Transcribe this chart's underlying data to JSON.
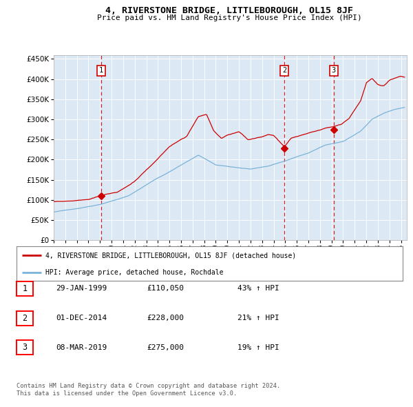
{
  "title": "4, RIVERSTONE BRIDGE, LITTLEBOROUGH, OL15 8JF",
  "subtitle": "Price paid vs. HM Land Registry's House Price Index (HPI)",
  "legend_line1": "4, RIVERSTONE BRIDGE, LITTLEBOROUGH, OL15 8JF (detached house)",
  "legend_line2": "HPI: Average price, detached house, Rochdale",
  "footer1": "Contains HM Land Registry data © Crown copyright and database right 2024.",
  "footer2": "This data is licensed under the Open Government Licence v3.0.",
  "transactions": [
    {
      "num": 1,
      "date": "29-JAN-1999",
      "price": 110050,
      "pct": "43%",
      "dir": "↑"
    },
    {
      "num": 2,
      "date": "01-DEC-2014",
      "price": 228000,
      "pct": "21%",
      "dir": "↑"
    },
    {
      "num": 3,
      "date": "08-MAR-2019",
      "price": 275000,
      "pct": "19%",
      "dir": "↑"
    }
  ],
  "transaction_dates_decimal": [
    1999.08,
    2014.92,
    2019.18
  ],
  "transaction_prices": [
    110050,
    228000,
    275000
  ],
  "hpi_color": "#7ab3d9",
  "price_color": "#cc0000",
  "dashed_color": "#cc0000",
  "plot_bg": "#dce9f5",
  "ylim": [
    0,
    460000
  ],
  "xlim_start": 1995.0,
  "xlim_end": 2025.5,
  "yticks": [
    0,
    50000,
    100000,
    150000,
    200000,
    250000,
    300000,
    350000,
    400000,
    450000
  ]
}
